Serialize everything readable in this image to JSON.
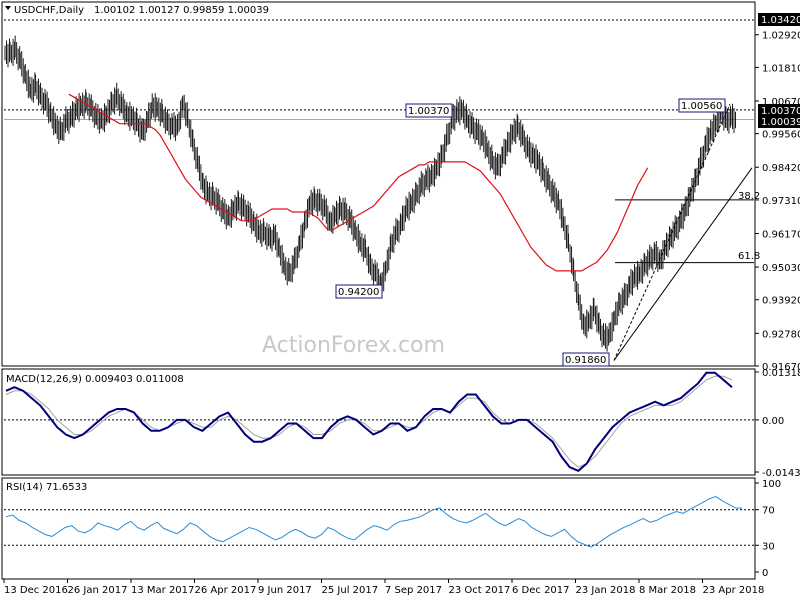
{
  "header": {
    "symbol": "USDCHF,Daily",
    "ohlc": "1.00102 1.00127 0.99859 1.00039"
  },
  "watermark": "ActionForex.com",
  "colors": {
    "candle": "#1a1a1a",
    "ma": "#e0101a",
    "macd": "#00007a",
    "signal": "#a0a0a0",
    "rsi": "#2a8cd6",
    "box_border": "#1a1a7a",
    "level": "#000000"
  },
  "chart_data": [
    {
      "type": "line",
      "name": "price",
      "price_axis_ticks": [
        "1.02920",
        "1.01810",
        "1.00670",
        "0.99560",
        "0.98420",
        "0.97310",
        "0.96170",
        "0.95030",
        "0.93920",
        "0.92780",
        "0.91670"
      ],
      "price_axis_values": [
        1.0292,
        1.0181,
        1.0067,
        0.9956,
        0.9842,
        0.9731,
        0.9617,
        0.9503,
        0.9392,
        0.9278,
        0.9167
      ],
      "ylim": [
        0.9167,
        1.0342
      ],
      "x_ticks": [
        "13 Dec 2016",
        "26 Jan 2017",
        "13 Mar 2017",
        "26 Apr 2017",
        "9 Jun 2017",
        "25 Jul 2017",
        "7 Sep 2017",
        "23 Oct 2017",
        "6 Dec 2017",
        "23 Jan 2018",
        "8 Mar 2018",
        "23 Apr 2018"
      ],
      "close": [
        1.023,
        1.024,
        1.02,
        1.015,
        1.01,
        1.012,
        1.008,
        1.006,
        1.002,
        0.998,
        0.996,
        1.0,
        1.001,
        1.004,
        1.005,
        1.006,
        1.004,
        1.001,
        1.0,
        1.002,
        1.006,
        1.008,
        1.005,
        1.002,
        1.001,
        0.999,
        0.996,
        1.0,
        1.005,
        1.004,
        1.002,
        0.999,
        0.998,
        0.998,
        1.006,
        1.0,
        0.992,
        0.985,
        0.978,
        0.975,
        0.974,
        0.972,
        0.969,
        0.967,
        0.97,
        0.972,
        0.97,
        0.968,
        0.965,
        0.962,
        0.962,
        0.96,
        0.961,
        0.956,
        0.95,
        0.948,
        0.952,
        0.958,
        0.965,
        0.972,
        0.973,
        0.972,
        0.97,
        0.965,
        0.968,
        0.97,
        0.969,
        0.966,
        0.962,
        0.958,
        0.956,
        0.95,
        0.948,
        0.944,
        0.95,
        0.958,
        0.962,
        0.965,
        0.97,
        0.972,
        0.975,
        0.978,
        0.98,
        0.981,
        0.984,
        0.988,
        0.994,
        1.0,
        1.003,
        1.0037,
        1.0,
        0.998,
        0.996,
        0.994,
        0.99,
        0.986,
        0.984,
        0.988,
        0.992,
        0.996,
        0.998,
        0.994,
        0.99,
        0.988,
        0.986,
        0.982,
        0.979,
        0.975,
        0.972,
        0.965,
        0.958,
        0.948,
        0.938,
        0.93,
        0.932,
        0.936,
        0.93,
        0.926,
        0.927,
        0.933,
        0.938,
        0.94,
        0.944,
        0.947,
        0.948,
        0.951,
        0.953,
        0.955,
        0.952,
        0.957,
        0.96,
        0.963,
        0.966,
        0.97,
        0.975,
        0.98,
        0.986,
        0.992,
        0.996,
        0.999,
        1.003,
        1.0,
        1.001,
        1.0004
      ],
      "ma_start": 12,
      "ma": [
        1.009,
        1.008,
        1.007,
        1.006,
        1.005,
        1.004,
        1.003,
        1.002,
        1.001,
        1.0,
        0.999,
        0.999,
        0.999,
        0.999,
        0.999,
        0.999,
        0.998,
        0.997,
        0.995,
        0.992,
        0.989,
        0.986,
        0.983,
        0.98,
        0.978,
        0.976,
        0.974,
        0.973,
        0.972,
        0.971,
        0.97,
        0.969,
        0.968,
        0.967,
        0.966,
        0.966,
        0.966,
        0.967,
        0.968,
        0.969,
        0.97,
        0.97,
        0.97,
        0.97,
        0.969,
        0.969,
        0.969,
        0.969,
        0.968,
        0.967,
        0.965,
        0.963,
        0.963,
        0.964,
        0.965,
        0.966,
        0.967,
        0.968,
        0.969,
        0.97,
        0.971,
        0.973,
        0.975,
        0.977,
        0.979,
        0.981,
        0.982,
        0.983,
        0.984,
        0.985,
        0.985,
        0.986,
        0.986,
        0.986,
        0.986,
        0.986,
        0.986,
        0.986,
        0.986,
        0.985,
        0.984,
        0.983,
        0.981,
        0.979,
        0.977,
        0.975,
        0.972,
        0.969,
        0.966,
        0.963,
        0.96,
        0.957,
        0.955,
        0.953,
        0.951,
        0.95,
        0.949,
        0.949,
        0.949,
        0.949,
        0.949,
        0.949,
        0.95,
        0.951,
        0.952,
        0.954,
        0.956,
        0.959,
        0.962,
        0.966,
        0.97,
        0.974,
        0.978,
        0.981,
        0.984
      ]
    },
    {
      "type": "line",
      "name": "MACD(12,26,9) 0.009403 0.011008",
      "ylim": [
        -0.01433,
        0.01318
      ],
      "axis_ticks": [
        "0.013184",
        "0.00",
        "-0.014339"
      ],
      "macd": [
        0.008,
        0.009,
        0.008,
        0.006,
        0.004,
        0.001,
        -0.002,
        -0.004,
        -0.005,
        -0.004,
        -0.002,
        0.0,
        0.002,
        0.003,
        0.003,
        0.002,
        -0.001,
        -0.003,
        -0.003,
        -0.002,
        0.0,
        0.0,
        -0.002,
        -0.003,
        -0.001,
        0.001,
        0.002,
        -0.001,
        -0.004,
        -0.006,
        -0.006,
        -0.005,
        -0.003,
        -0.001,
        -0.001,
        -0.003,
        -0.005,
        -0.005,
        -0.002,
        0.0,
        0.001,
        0.0,
        -0.002,
        -0.004,
        -0.003,
        -0.001,
        -0.001,
        -0.003,
        -0.002,
        0.001,
        0.003,
        0.003,
        0.002,
        0.005,
        0.007,
        0.007,
        0.004,
        0.001,
        -0.001,
        -0.001,
        0.0,
        0.0,
        -0.002,
        -0.004,
        -0.006,
        -0.01,
        -0.013,
        -0.014,
        -0.012,
        -0.008,
        -0.005,
        -0.002,
        0.0,
        0.002,
        0.003,
        0.004,
        0.005,
        0.004,
        0.005,
        0.006,
        0.008,
        0.01,
        0.013,
        0.013,
        0.011,
        0.009
      ],
      "signal": [
        0.007,
        0.008,
        0.008,
        0.007,
        0.005,
        0.003,
        0.0,
        -0.002,
        -0.004,
        -0.004,
        -0.003,
        -0.001,
        0.001,
        0.002,
        0.003,
        0.002,
        0.0,
        -0.002,
        -0.003,
        -0.002,
        -0.001,
        0.0,
        -0.001,
        -0.002,
        -0.002,
        0.0,
        0.001,
        0.0,
        -0.002,
        -0.004,
        -0.005,
        -0.005,
        -0.004,
        -0.002,
        -0.001,
        -0.002,
        -0.004,
        -0.004,
        -0.003,
        -0.001,
        0.0,
        0.0,
        -0.001,
        -0.003,
        -0.003,
        -0.002,
        -0.001,
        -0.002,
        -0.002,
        0.0,
        0.002,
        0.003,
        0.002,
        0.004,
        0.006,
        0.006,
        0.005,
        0.002,
        0.0,
        -0.001,
        0.0,
        0.0,
        -0.001,
        -0.003,
        -0.005,
        -0.008,
        -0.011,
        -0.013,
        -0.012,
        -0.01,
        -0.007,
        -0.004,
        -0.001,
        0.001,
        0.002,
        0.003,
        0.004,
        0.004,
        0.004,
        0.005,
        0.007,
        0.009,
        0.011,
        0.012,
        0.012,
        0.011
      ]
    },
    {
      "type": "line",
      "name": "RSI(14) 71.6533",
      "ylim": [
        0,
        100
      ],
      "axis_ticks": [
        "100",
        "70",
        "30",
        "0"
      ],
      "axis_values": [
        100,
        70,
        30,
        0
      ],
      "values": [
        62,
        64,
        58,
        55,
        50,
        46,
        42,
        40,
        45,
        50,
        52,
        46,
        44,
        48,
        55,
        52,
        50,
        47,
        53,
        57,
        50,
        47,
        52,
        56,
        49,
        46,
        43,
        48,
        55,
        52,
        46,
        40,
        36,
        34,
        38,
        42,
        46,
        50,
        48,
        44,
        40,
        36,
        39,
        44,
        48,
        45,
        40,
        38,
        42,
        50,
        47,
        42,
        38,
        36,
        42,
        48,
        52,
        50,
        47,
        53,
        57,
        58,
        60,
        62,
        66,
        70,
        72,
        65,
        60,
        57,
        55,
        58,
        62,
        66,
        60,
        55,
        52,
        56,
        60,
        57,
        50,
        46,
        42,
        40,
        44,
        48,
        40,
        34,
        31,
        28,
        32,
        37,
        42,
        46,
        50,
        53,
        57,
        60,
        56,
        58,
        62,
        65,
        68,
        66,
        70,
        74,
        78,
        82,
        85,
        80,
        76,
        72,
        71.65
      ]
    }
  ],
  "annotations": {
    "level_top": "1.03420",
    "level_high": "1.00370",
    "box_high_left": "1.00370",
    "box_high_right": "1.00560",
    "box_low_mid": "0.94200",
    "box_low_right": "0.91860",
    "fib_38": "38.2",
    "fib_61": "61.8",
    "last_price": "1.00039"
  }
}
